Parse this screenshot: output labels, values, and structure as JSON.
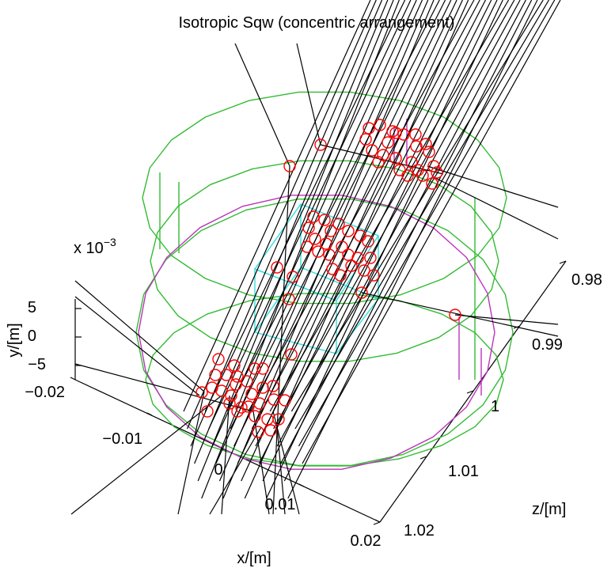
{
  "chart_data": {
    "type": "3d-line-scatter",
    "title": "Isotropic Sqw (concentric arrangement)",
    "xlabel": "x/[m]",
    "ylabel": "y/[m]",
    "zlabel": "z/[m]",
    "y_exponent": "x 10",
    "y_exponent_power": "−3",
    "x_ticks": [
      "−0.02",
      "−0.01",
      "0",
      "0.01",
      "0.02"
    ],
    "y_ticks": [
      "5",
      "0",
      "−5"
    ],
    "z_ticks": [
      "0.98",
      "0.99",
      "1",
      "1.01",
      "1.02"
    ],
    "xlim": [
      -0.02,
      0.02
    ],
    "ylim": [
      -0.007,
      0.007
    ],
    "zlim": [
      0.98,
      1.02
    ],
    "grid": false,
    "series": [
      {
        "role": "neutron-rays",
        "color": "#000000"
      },
      {
        "role": "scattering-events",
        "color": "#ff0000"
      },
      {
        "role": "outer-cylinders",
        "color": "#33bb33"
      },
      {
        "role": "inner-cylinder",
        "color": "#bb33bb"
      },
      {
        "role": "sample-box",
        "color": "#33dddd"
      }
    ]
  }
}
